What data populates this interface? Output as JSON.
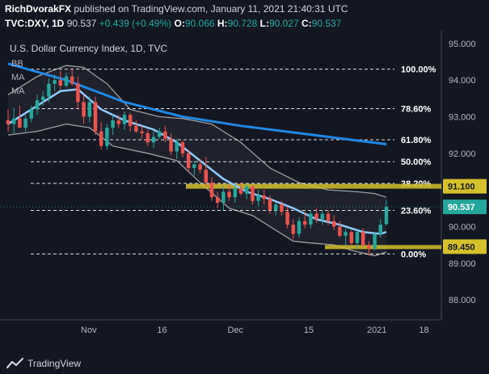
{
  "header": {
    "author": "RichDvorakFX",
    "published_text": "published on TradingView.com, January 11, 2021 21:40:31 UTC",
    "symbol": "TVC:DXY, 1D",
    "last": "90.537",
    "change": "+0.439 (+0.49%)",
    "ohlc": [
      {
        "label": "O:",
        "value": "90.066"
      },
      {
        "label": "H:",
        "value": "90.728"
      },
      {
        "label": "L:",
        "value": "90.027"
      },
      {
        "label": "C:",
        "value": "90.537"
      }
    ]
  },
  "footer": {
    "brand": "TradingView"
  },
  "colors": {
    "background": "#131722",
    "up": "#26a69a",
    "down": "#ef5350",
    "bb": "#9e9e9e",
    "ma_fast": "#90caf9",
    "ma_slow": "#1e88e5",
    "highlight": "#d4c12b",
    "price_tag": "#26a69a"
  },
  "chart_data": {
    "type": "candlestick",
    "title": "U.S. Dollar Currency Index, 1D, TVC",
    "legend": [
      "BB",
      "MA",
      "MA"
    ],
    "y_range": [
      87.45,
      95.35
    ],
    "y_ticks": [
      "95.000",
      "94.000",
      "93.000",
      "92.000",
      "91.000",
      "90.000",
      "89.000",
      "88.000"
    ],
    "x_ticks": [
      "Nov",
      "16",
      "Dec",
      "15",
      "2021",
      "18"
    ],
    "fib_levels": [
      {
        "label": "100.00%",
        "value": 94.3
      },
      {
        "label": "78.60%",
        "value": 93.22
      },
      {
        "label": "61.80%",
        "value": 92.37
      },
      {
        "label": "50.00%",
        "value": 91.77
      },
      {
        "label": "38.20%",
        "value": 91.18
      },
      {
        "label": "23.60%",
        "value": 90.44
      },
      {
        "label": "0.00%",
        "value": 89.25
      }
    ],
    "price_tags": [
      {
        "label": "91.100",
        "value": 91.1,
        "type": "highlight"
      },
      {
        "label": "90.537",
        "value": 90.537,
        "type": "last"
      },
      {
        "label": "89.450",
        "value": 89.45,
        "type": "highlight"
      }
    ],
    "candles": [
      {
        "o": 92.9,
        "h": 93.2,
        "l": 92.6,
        "c": 92.8
      },
      {
        "o": 92.8,
        "h": 93.25,
        "l": 92.55,
        "c": 92.95
      },
      {
        "o": 92.95,
        "h": 93.3,
        "l": 92.7,
        "c": 92.7
      },
      {
        "o": 92.7,
        "h": 93.05,
        "l": 92.6,
        "c": 92.95
      },
      {
        "o": 92.95,
        "h": 93.3,
        "l": 92.85,
        "c": 93.2
      },
      {
        "o": 93.2,
        "h": 93.6,
        "l": 93.05,
        "c": 93.45
      },
      {
        "o": 93.45,
        "h": 93.7,
        "l": 93.3,
        "c": 93.55
      },
      {
        "o": 93.55,
        "h": 94.05,
        "l": 93.4,
        "c": 93.9
      },
      {
        "o": 93.9,
        "h": 94.15,
        "l": 93.7,
        "c": 94.0
      },
      {
        "o": 94.0,
        "h": 94.25,
        "l": 93.75,
        "c": 93.85
      },
      {
        "o": 93.85,
        "h": 94.2,
        "l": 93.8,
        "c": 94.1
      },
      {
        "o": 94.1,
        "h": 94.3,
        "l": 93.85,
        "c": 93.9
      },
      {
        "o": 93.9,
        "h": 94.1,
        "l": 93.2,
        "c": 93.4
      },
      {
        "o": 93.4,
        "h": 93.6,
        "l": 92.8,
        "c": 93.0
      },
      {
        "o": 93.0,
        "h": 93.55,
        "l": 92.85,
        "c": 93.4
      },
      {
        "o": 93.4,
        "h": 93.55,
        "l": 92.5,
        "c": 92.6
      },
      {
        "o": 92.6,
        "h": 92.85,
        "l": 92.1,
        "c": 92.2
      },
      {
        "o": 92.2,
        "h": 92.8,
        "l": 92.1,
        "c": 92.7
      },
      {
        "o": 92.7,
        "h": 93.05,
        "l": 92.5,
        "c": 92.9
      },
      {
        "o": 92.9,
        "h": 93.05,
        "l": 92.7,
        "c": 92.8
      },
      {
        "o": 92.8,
        "h": 93.15,
        "l": 92.65,
        "c": 93.05
      },
      {
        "o": 93.05,
        "h": 93.1,
        "l": 92.6,
        "c": 92.75
      },
      {
        "o": 92.75,
        "h": 92.9,
        "l": 92.55,
        "c": 92.6
      },
      {
        "o": 92.6,
        "h": 92.75,
        "l": 92.4,
        "c": 92.55
      },
      {
        "o": 92.55,
        "h": 92.65,
        "l": 92.2,
        "c": 92.3
      },
      {
        "o": 92.3,
        "h": 92.6,
        "l": 92.15,
        "c": 92.45
      },
      {
        "o": 92.45,
        "h": 92.7,
        "l": 92.4,
        "c": 92.6
      },
      {
        "o": 92.6,
        "h": 92.75,
        "l": 92.3,
        "c": 92.4
      },
      {
        "o": 92.4,
        "h": 92.55,
        "l": 91.95,
        "c": 92.05
      },
      {
        "o": 92.05,
        "h": 92.4,
        "l": 91.85,
        "c": 92.3
      },
      {
        "o": 92.3,
        "h": 92.35,
        "l": 91.9,
        "c": 92.0
      },
      {
        "o": 92.0,
        "h": 92.1,
        "l": 91.5,
        "c": 91.6
      },
      {
        "o": 91.6,
        "h": 91.8,
        "l": 91.4,
        "c": 91.7
      },
      {
        "o": 91.7,
        "h": 91.85,
        "l": 91.45,
        "c": 91.55
      },
      {
        "o": 91.55,
        "h": 91.9,
        "l": 91.1,
        "c": 91.2
      },
      {
        "o": 91.2,
        "h": 91.35,
        "l": 90.7,
        "c": 90.8
      },
      {
        "o": 90.8,
        "h": 90.95,
        "l": 90.5,
        "c": 90.65
      },
      {
        "o": 90.65,
        "h": 91.1,
        "l": 90.45,
        "c": 90.95
      },
      {
        "o": 90.95,
        "h": 91.15,
        "l": 90.7,
        "c": 90.8
      },
      {
        "o": 90.8,
        "h": 91.15,
        "l": 90.65,
        "c": 91.05
      },
      {
        "o": 91.05,
        "h": 91.2,
        "l": 90.85,
        "c": 90.9
      },
      {
        "o": 90.9,
        "h": 91.15,
        "l": 90.75,
        "c": 91.1
      },
      {
        "o": 91.1,
        "h": 91.15,
        "l": 90.6,
        "c": 90.7
      },
      {
        "o": 90.7,
        "h": 91.0,
        "l": 90.55,
        "c": 90.85
      },
      {
        "o": 90.85,
        "h": 91.0,
        "l": 90.6,
        "c": 90.75
      },
      {
        "o": 90.75,
        "h": 90.85,
        "l": 90.35,
        "c": 90.45
      },
      {
        "o": 90.45,
        "h": 90.65,
        "l": 90.3,
        "c": 90.6
      },
      {
        "o": 90.6,
        "h": 90.7,
        "l": 90.3,
        "c": 90.4
      },
      {
        "o": 90.4,
        "h": 90.55,
        "l": 89.95,
        "c": 90.05
      },
      {
        "o": 90.05,
        "h": 90.2,
        "l": 89.65,
        "c": 89.8
      },
      {
        "o": 89.8,
        "h": 90.25,
        "l": 89.7,
        "c": 90.15
      },
      {
        "o": 90.15,
        "h": 90.4,
        "l": 89.95,
        "c": 90.05
      },
      {
        "o": 90.05,
        "h": 90.45,
        "l": 89.95,
        "c": 90.35
      },
      {
        "o": 90.35,
        "h": 90.5,
        "l": 90.1,
        "c": 90.2
      },
      {
        "o": 90.2,
        "h": 90.45,
        "l": 90.05,
        "c": 90.35
      },
      {
        "o": 90.35,
        "h": 90.45,
        "l": 90.05,
        "c": 90.15
      },
      {
        "o": 90.15,
        "h": 90.3,
        "l": 89.9,
        "c": 90.0
      },
      {
        "o": 90.0,
        "h": 90.15,
        "l": 89.7,
        "c": 89.75
      },
      {
        "o": 89.75,
        "h": 89.95,
        "l": 89.5,
        "c": 89.85
      },
      {
        "o": 89.85,
        "h": 89.9,
        "l": 89.5,
        "c": 89.55
      },
      {
        "o": 89.55,
        "h": 89.9,
        "l": 89.4,
        "c": 89.85
      },
      {
        "o": 89.85,
        "h": 89.95,
        "l": 89.45,
        "c": 89.5
      },
      {
        "o": 89.5,
        "h": 89.6,
        "l": 89.2,
        "c": 89.4
      },
      {
        "o": 89.4,
        "h": 89.85,
        "l": 89.35,
        "c": 89.8
      },
      {
        "o": 89.8,
        "h": 90.2,
        "l": 89.7,
        "c": 90.05
      },
      {
        "o": 90.066,
        "h": 90.728,
        "l": 90.027,
        "c": 90.537
      }
    ],
    "bb_upper": [
      [
        0,
        93.6
      ],
      [
        5,
        94.1
      ],
      [
        10,
        94.4
      ],
      [
        13,
        94.35
      ],
      [
        17,
        93.9
      ],
      [
        21,
        93.2
      ],
      [
        26,
        93.0
      ],
      [
        30,
        92.95
      ],
      [
        35,
        92.8
      ],
      [
        40,
        92.3
      ],
      [
        45,
        91.6
      ],
      [
        50,
        91.2
      ],
      [
        55,
        91.0
      ],
      [
        60,
        90.95
      ],
      [
        63,
        90.9
      ],
      [
        65,
        90.8
      ]
    ],
    "bb_lower": [
      [
        0,
        92.5
      ],
      [
        5,
        92.6
      ],
      [
        10,
        92.8
      ],
      [
        14,
        92.7
      ],
      [
        18,
        92.2
      ],
      [
        24,
        92.0
      ],
      [
        29,
        91.8
      ],
      [
        33,
        91.2
      ],
      [
        38,
        90.5
      ],
      [
        42,
        90.3
      ],
      [
        46,
        89.9
      ],
      [
        49,
        89.6
      ],
      [
        52,
        89.55
      ],
      [
        56,
        89.5
      ],
      [
        59,
        89.35
      ],
      [
        63,
        89.2
      ],
      [
        65,
        89.3
      ]
    ],
    "ma_fast": [
      [
        0,
        92.8
      ],
      [
        5,
        93.3
      ],
      [
        9,
        93.7
      ],
      [
        12,
        93.75
      ],
      [
        16,
        93.2
      ],
      [
        20,
        92.9
      ],
      [
        25,
        92.65
      ],
      [
        29,
        92.3
      ],
      [
        33,
        91.8
      ],
      [
        37,
        91.3
      ],
      [
        41,
        90.95
      ],
      [
        45,
        90.75
      ],
      [
        49,
        90.5
      ],
      [
        53,
        90.2
      ],
      [
        57,
        90.05
      ],
      [
        61,
        89.85
      ],
      [
        64,
        89.8
      ],
      [
        65,
        89.85
      ]
    ],
    "ma_slow": [
      [
        0,
        94.45
      ],
      [
        10,
        94.0
      ],
      [
        20,
        93.4
      ],
      [
        30,
        93.0
      ],
      [
        40,
        92.75
      ],
      [
        50,
        92.55
      ],
      [
        60,
        92.35
      ],
      [
        65,
        92.25
      ]
    ]
  }
}
